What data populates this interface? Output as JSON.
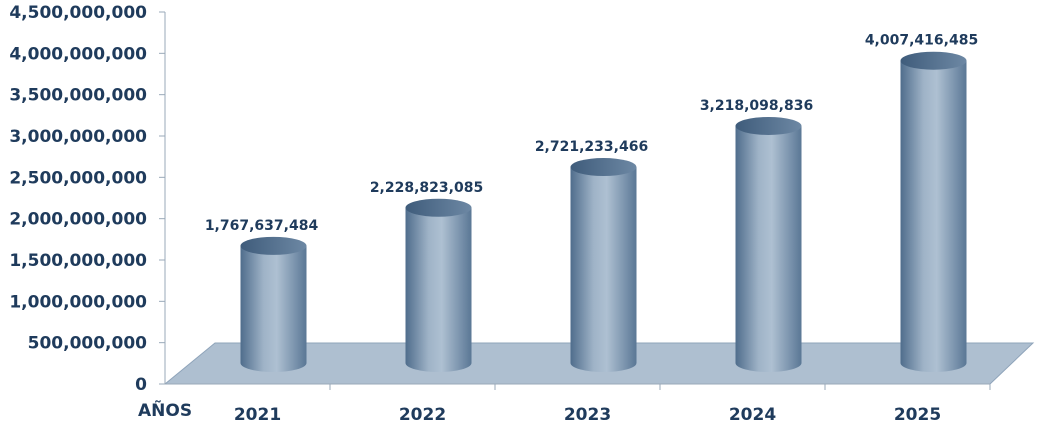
{
  "chart_data": {
    "type": "bar",
    "categories": [
      "2021",
      "2022",
      "2023",
      "2024",
      "2025"
    ],
    "values": [
      1767637484,
      2228823085,
      2721233466,
      3218098836,
      4007416485
    ],
    "value_labels": [
      "1,767,637,484",
      "2,228,823,085",
      "2,721,233,466",
      "3,218,098,836",
      "4,007,416,485"
    ],
    "yticks": [
      "0",
      "500,000,000",
      "1,000,000,000",
      "1,500,000,000",
      "2,000,000,000",
      "2,500,000,000",
      "3,000,000,000",
      "3,500,000,000",
      "4,000,000,000",
      "4,500,000,000"
    ],
    "xlabel": "AÑOS",
    "ylabel": "",
    "title": "",
    "ylim": [
      0,
      4500000000
    ],
    "style": "3d-cylinder",
    "colors": {
      "bar_dark": "#52708f",
      "bar_light": "#a9bccf",
      "floor": "#aebfd0",
      "text": "#1f3b5c"
    }
  }
}
